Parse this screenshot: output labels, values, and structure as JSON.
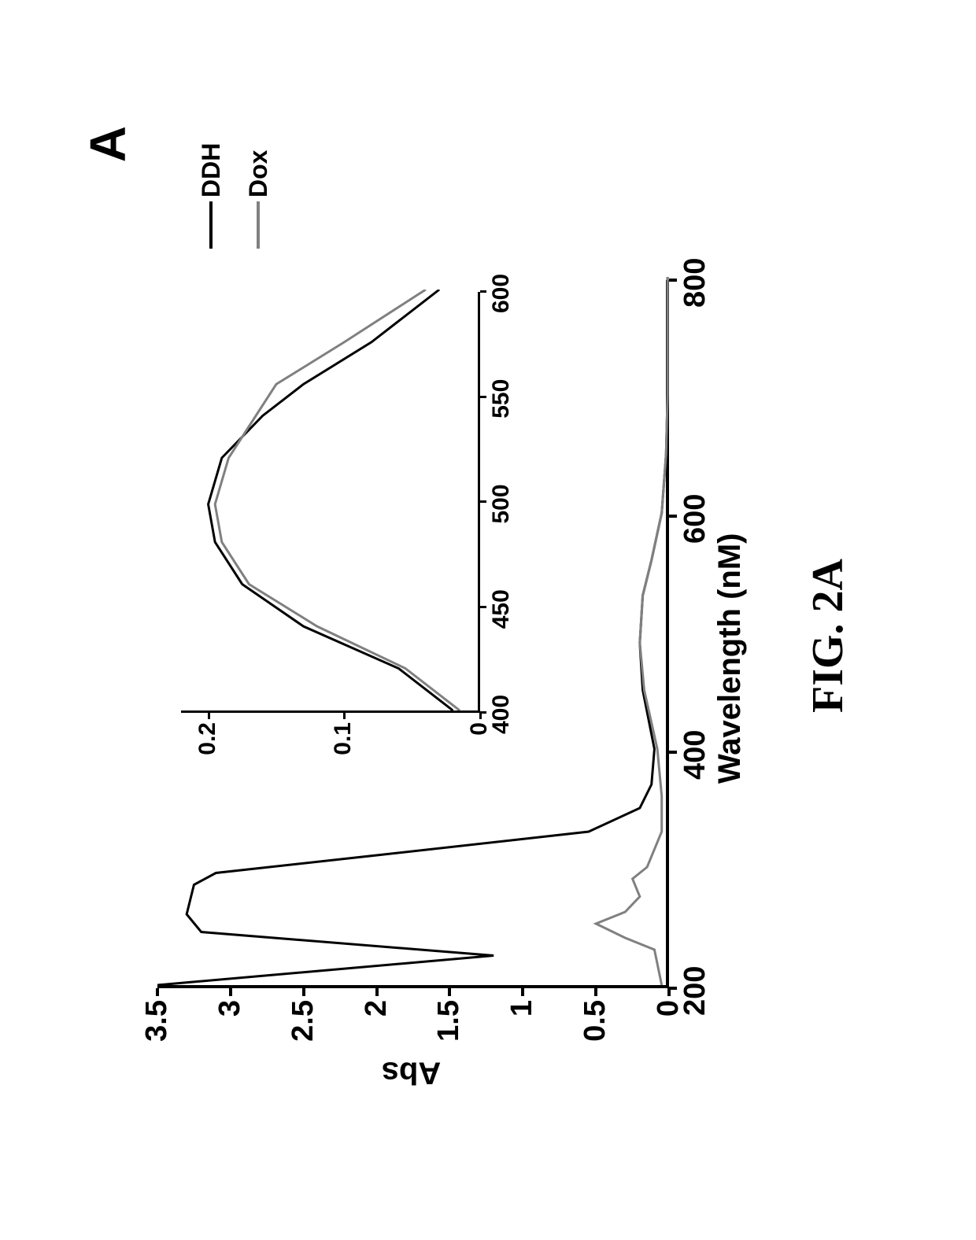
{
  "panel_label": "A",
  "caption": "FIG. 2A",
  "main_chart": {
    "type": "line",
    "xlabel": "Wavelength (nM)",
    "ylabel": "Abs",
    "xlim": [
      200,
      800
    ],
    "ylim": [
      0,
      3.5
    ],
    "xticks": [
      200,
      400,
      600,
      800
    ],
    "yticks": [
      0,
      0.5,
      1,
      1.5,
      2,
      2.5,
      3,
      3.5
    ],
    "ytick_labels": [
      "0",
      "0.5",
      "1",
      "1.5",
      "2",
      "2.5",
      "3",
      "3.5"
    ],
    "background_color": "#ffffff",
    "axis_color": "#000000",
    "series": [
      {
        "name": "DDH",
        "color": "#000000",
        "line_width": 3,
        "points": [
          [
            200,
            3.5
          ],
          [
            225,
            1.2
          ],
          [
            245,
            3.2
          ],
          [
            260,
            3.3
          ],
          [
            285,
            3.25
          ],
          [
            295,
            3.1
          ],
          [
            310,
            2.0
          ],
          [
            330,
            0.55
          ],
          [
            350,
            0.2
          ],
          [
            370,
            0.12
          ],
          [
            400,
            0.1
          ],
          [
            450,
            0.18
          ],
          [
            490,
            0.2
          ],
          [
            530,
            0.18
          ],
          [
            560,
            0.12
          ],
          [
            600,
            0.05
          ],
          [
            650,
            0.02
          ],
          [
            700,
            0.01
          ],
          [
            800,
            0.01
          ]
        ]
      },
      {
        "name": "Dox",
        "color": "#808080",
        "line_width": 3,
        "points": [
          [
            200,
            0.05
          ],
          [
            230,
            0.1
          ],
          [
            240,
            0.3
          ],
          [
            252,
            0.5
          ],
          [
            262,
            0.3
          ],
          [
            275,
            0.2
          ],
          [
            290,
            0.25
          ],
          [
            300,
            0.15
          ],
          [
            330,
            0.05
          ],
          [
            360,
            0.05
          ],
          [
            400,
            0.08
          ],
          [
            450,
            0.17
          ],
          [
            490,
            0.2
          ],
          [
            530,
            0.18
          ],
          [
            560,
            0.12
          ],
          [
            600,
            0.05
          ],
          [
            650,
            0.02
          ],
          [
            700,
            0.01
          ],
          [
            800,
            0.01
          ]
        ]
      }
    ]
  },
  "inset_chart": {
    "type": "line",
    "xlim": [
      400,
      600
    ],
    "ylim": [
      0,
      0.22
    ],
    "xticks": [
      400,
      450,
      500,
      550,
      600
    ],
    "yticks": [
      0,
      0.1,
      0.2
    ],
    "ytick_labels": [
      "0",
      "0.1",
      "0.2"
    ],
    "background_color": "#ffffff",
    "axis_color": "#000000",
    "series": [
      {
        "name": "DDH",
        "color": "#000000",
        "line_width": 3,
        "points": [
          [
            400,
            0.02
          ],
          [
            420,
            0.06
          ],
          [
            440,
            0.13
          ],
          [
            460,
            0.175
          ],
          [
            480,
            0.195
          ],
          [
            498,
            0.2
          ],
          [
            520,
            0.19
          ],
          [
            540,
            0.16
          ],
          [
            555,
            0.13
          ],
          [
            575,
            0.08
          ],
          [
            600,
            0.03
          ]
        ]
      },
      {
        "name": "Dox",
        "color": "#808080",
        "line_width": 3,
        "points": [
          [
            400,
            0.015
          ],
          [
            420,
            0.055
          ],
          [
            440,
            0.12
          ],
          [
            460,
            0.17
          ],
          [
            480,
            0.19
          ],
          [
            498,
            0.195
          ],
          [
            520,
            0.185
          ],
          [
            535,
            0.17
          ],
          [
            555,
            0.15
          ],
          [
            575,
            0.1
          ],
          [
            600,
            0.04
          ]
        ]
      }
    ]
  },
  "legend": {
    "items": [
      {
        "label": "DDH",
        "color": "#000000"
      },
      {
        "label": "Dox",
        "color": "#808080"
      }
    ]
  },
  "label_fontsize": 40,
  "tick_fontsize": 38
}
